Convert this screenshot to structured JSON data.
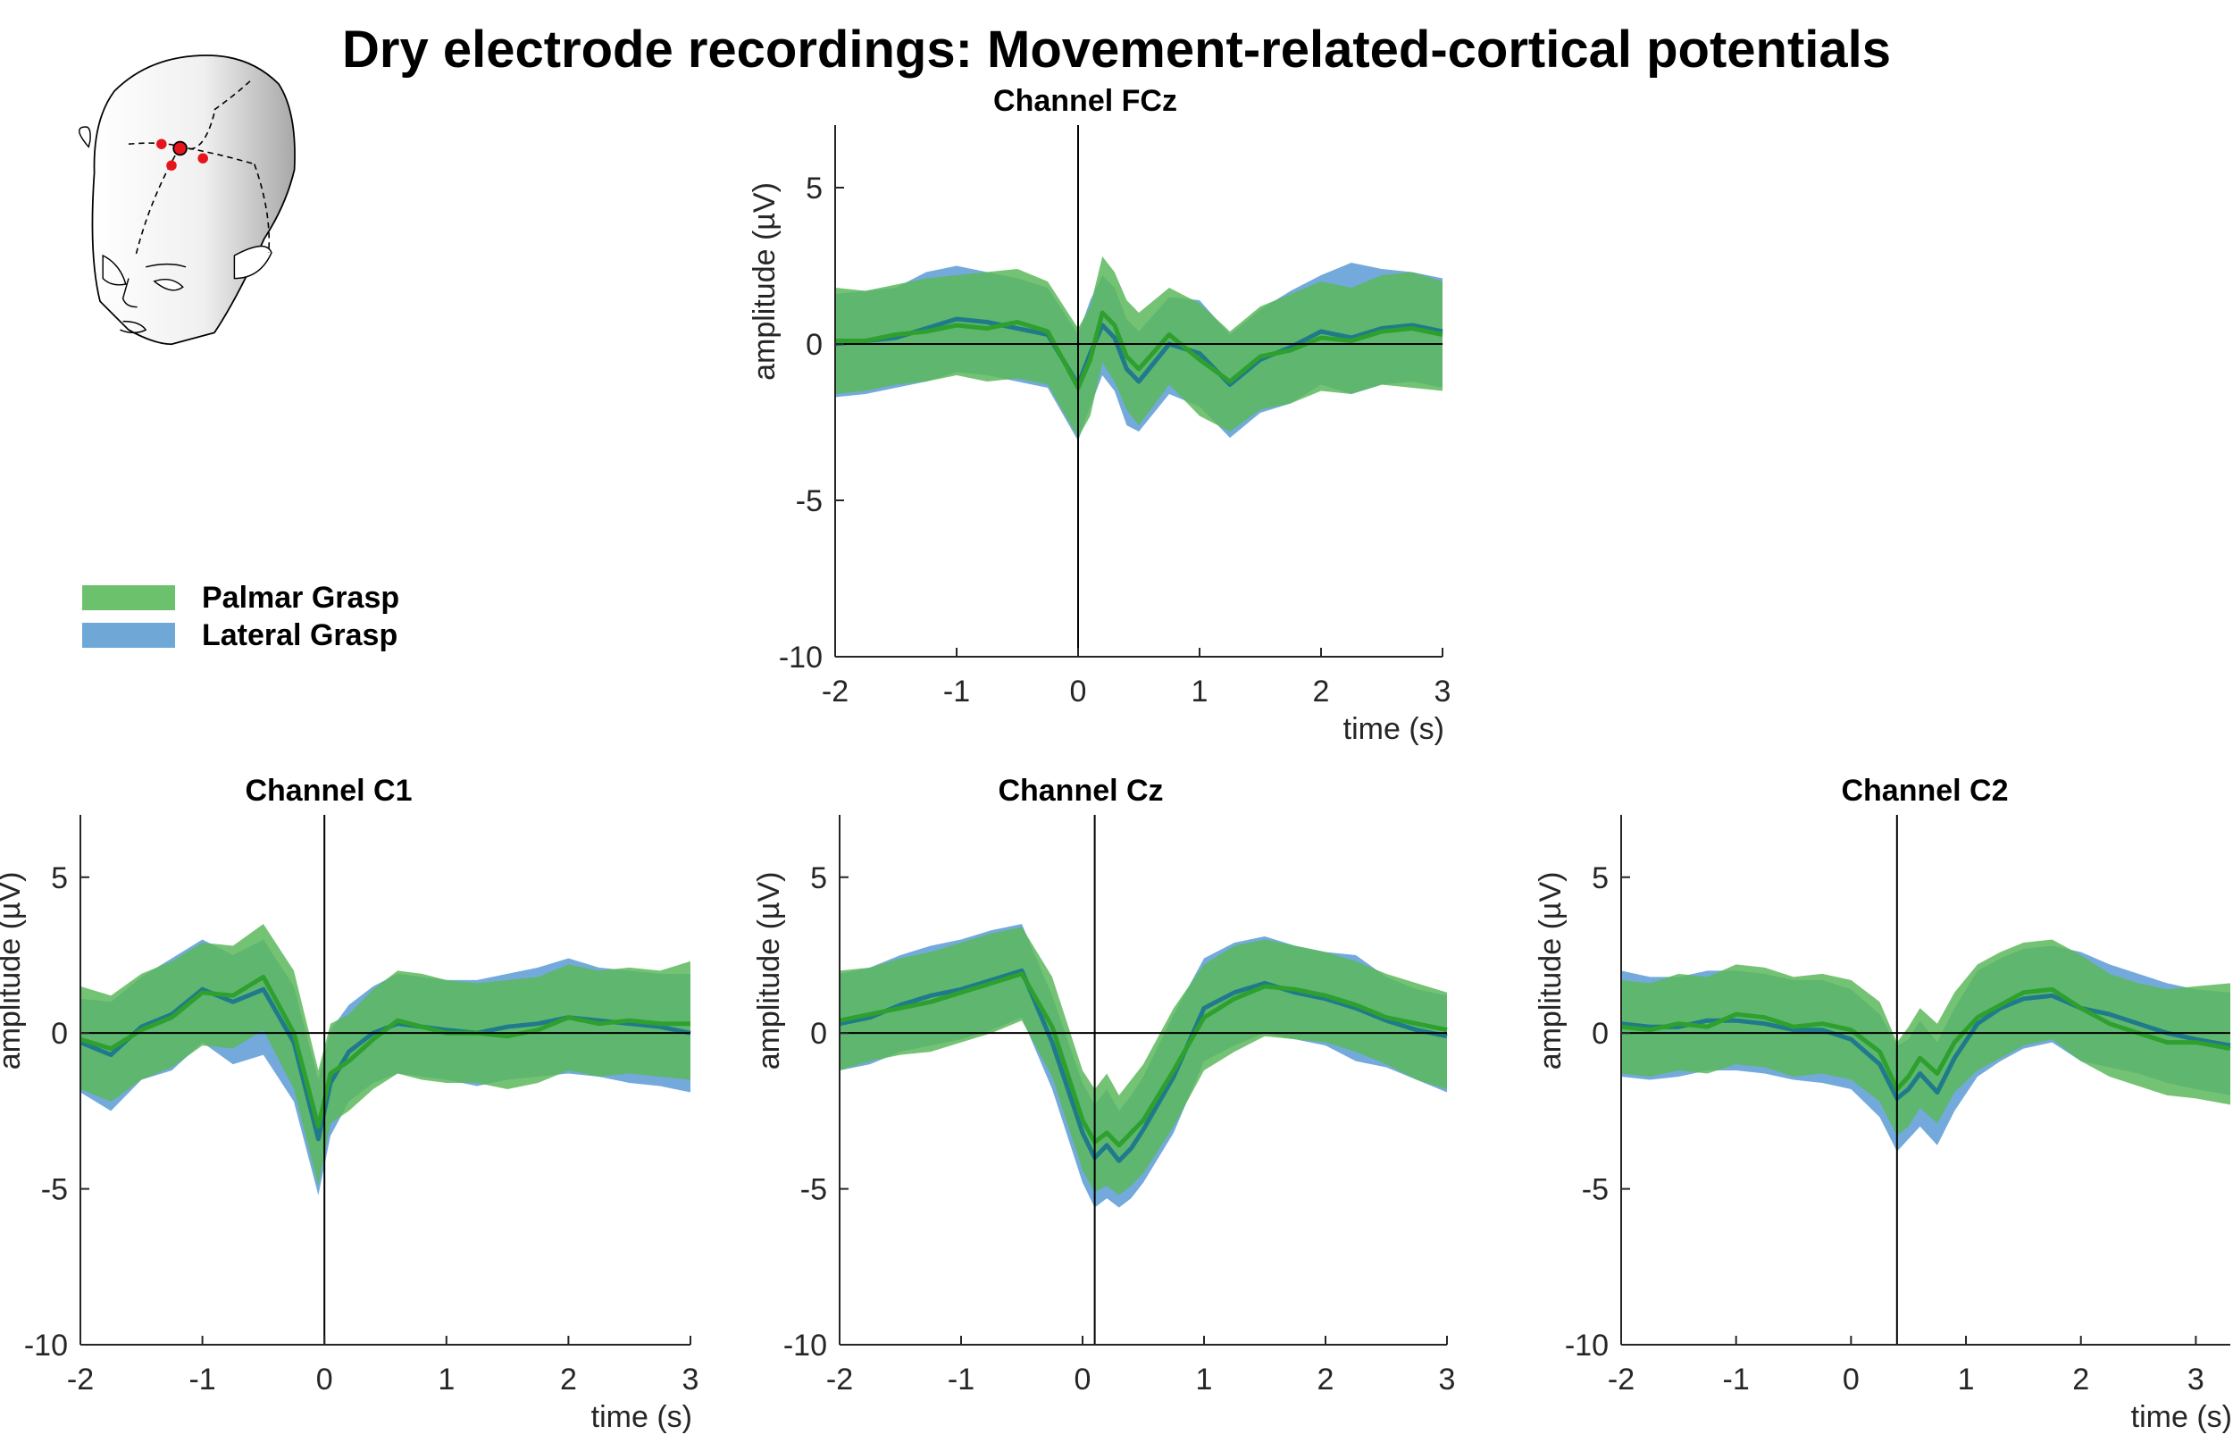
{
  "title": "Dry electrode recordings: Movement-related-cortical potentials",
  "colors": {
    "palmar": "#5cb85c",
    "lateral": "#5b9bd5",
    "palmar_line": "#2ea02e",
    "lateral_line": "#1f7a8c"
  },
  "legend": [
    {
      "label": "Palmar Grasp",
      "color": "#6cc16c"
    },
    {
      "label": "Lateral Grasp",
      "color": "#6fa8d6"
    }
  ],
  "chart_data": [
    {
      "type": "area",
      "title": "Channel FCz",
      "xlabel": "time (s)",
      "ylabel": "amplitude (µV)",
      "xlim": [
        -2,
        3
      ],
      "ylim": [
        -10,
        7
      ],
      "xticks": [
        -2,
        -1,
        0,
        1,
        2,
        3
      ],
      "yticks": [
        -10,
        -5,
        0,
        5
      ],
      "onset": 0,
      "x": [
        -2,
        -1.75,
        -1.5,
        -1.25,
        -1,
        -0.75,
        -0.5,
        -0.25,
        0,
        0.1,
        0.2,
        0.3,
        0.4,
        0.5,
        0.75,
        1,
        1.25,
        1.5,
        1.75,
        2,
        2.25,
        2.5,
        2.75,
        3
      ],
      "series": [
        {
          "name": "Palmar Grasp",
          "mean": [
            0.1,
            0.1,
            0.3,
            0.4,
            0.6,
            0.5,
            0.7,
            0.4,
            -1.4,
            -0.5,
            1.0,
            0.6,
            -0.4,
            -0.8,
            0.3,
            -0.5,
            -1.2,
            -0.4,
            -0.2,
            0.2,
            0.1,
            0.4,
            0.5,
            0.3
          ],
          "upper": [
            1.8,
            1.7,
            1.9,
            2.1,
            2.2,
            2.3,
            2.4,
            2.0,
            0.5,
            1.2,
            2.8,
            2.3,
            1.4,
            1.0,
            1.8,
            1.3,
            0.4,
            1.2,
            1.6,
            2.0,
            1.8,
            2.2,
            2.3,
            2.0
          ],
          "lower": [
            -1.6,
            -1.5,
            -1.3,
            -1.2,
            -1.0,
            -1.2,
            -1.1,
            -1.3,
            -3.0,
            -2.3,
            -0.6,
            -1.2,
            -2.1,
            -2.6,
            -1.3,
            -2.3,
            -2.8,
            -2.1,
            -1.9,
            -1.5,
            -1.6,
            -1.3,
            -1.4,
            -1.5
          ]
        },
        {
          "name": "Lateral Grasp",
          "mean": [
            0.0,
            0.1,
            0.2,
            0.5,
            0.8,
            0.7,
            0.5,
            0.3,
            -1.3,
            -0.3,
            0.6,
            0.2,
            -0.8,
            -1.2,
            0.0,
            -0.3,
            -1.3,
            -0.5,
            -0.1,
            0.4,
            0.2,
            0.5,
            0.6,
            0.4
          ],
          "upper": [
            1.6,
            1.7,
            1.8,
            2.3,
            2.5,
            2.3,
            2.1,
            1.8,
            0.3,
            1.4,
            2.2,
            1.8,
            0.8,
            0.4,
            1.5,
            1.4,
            0.3,
            1.1,
            1.7,
            2.2,
            2.6,
            2.4,
            2.3,
            2.1
          ],
          "lower": [
            -1.7,
            -1.6,
            -1.4,
            -1.2,
            -0.9,
            -1.0,
            -1.2,
            -1.4,
            -3.1,
            -2.0,
            -1.0,
            -1.5,
            -2.6,
            -2.8,
            -1.6,
            -2.0,
            -3.0,
            -2.2,
            -1.9,
            -1.3,
            -1.6,
            -1.3,
            -1.2,
            -1.4
          ]
        }
      ]
    },
    {
      "type": "area",
      "title": "Channel C1",
      "xlabel": "time (s)",
      "ylabel": "amplitude (µV)",
      "xlim": [
        -2,
        3
      ],
      "ylim": [
        -10,
        7
      ],
      "xticks": [
        -2,
        -1,
        0,
        1,
        2,
        3
      ],
      "yticks": [
        -10,
        -5,
        0,
        5
      ],
      "onset": 0,
      "x": [
        -2,
        -1.75,
        -1.5,
        -1.25,
        -1,
        -0.75,
        -0.5,
        -0.25,
        -0.05,
        0.05,
        0.2,
        0.4,
        0.6,
        0.8,
        1,
        1.25,
        1.5,
        1.75,
        2,
        2.25,
        2.5,
        2.75,
        3
      ],
      "series": [
        {
          "name": "Palmar Grasp",
          "mean": [
            -0.2,
            -0.5,
            0.1,
            0.5,
            1.3,
            1.2,
            1.8,
            0.0,
            -3.0,
            -1.3,
            -0.9,
            -0.2,
            0.4,
            0.2,
            0.0,
            0.0,
            -0.1,
            0.1,
            0.5,
            0.3,
            0.4,
            0.3,
            0.3
          ],
          "upper": [
            1.5,
            1.2,
            1.9,
            2.3,
            2.9,
            2.8,
            3.5,
            2.0,
            -1.2,
            0.3,
            0.6,
            1.4,
            2.0,
            1.9,
            1.7,
            1.6,
            1.7,
            1.8,
            2.2,
            2.0,
            2.1,
            2.0,
            2.3
          ],
          "lower": [
            -1.8,
            -2.2,
            -1.5,
            -1.1,
            -0.4,
            -0.5,
            0.1,
            -1.8,
            -4.9,
            -2.9,
            -2.5,
            -1.8,
            -1.3,
            -1.5,
            -1.6,
            -1.6,
            -1.8,
            -1.6,
            -1.2,
            -1.4,
            -1.3,
            -1.4,
            -1.5
          ]
        },
        {
          "name": "Lateral Grasp",
          "mean": [
            -0.3,
            -0.7,
            0.2,
            0.6,
            1.4,
            1.0,
            1.4,
            -0.3,
            -3.4,
            -1.6,
            -0.6,
            0.0,
            0.3,
            0.2,
            0.1,
            0.0,
            0.2,
            0.3,
            0.5,
            0.4,
            0.3,
            0.2,
            0.0
          ],
          "upper": [
            1.1,
            1.0,
            1.8,
            2.4,
            3.0,
            2.5,
            3.0,
            1.5,
            -1.5,
            0.1,
            0.9,
            1.5,
            1.9,
            1.8,
            1.7,
            1.7,
            1.9,
            2.1,
            2.4,
            2.1,
            2.0,
            1.9,
            1.9
          ],
          "lower": [
            -1.9,
            -2.5,
            -1.5,
            -1.2,
            -0.3,
            -1.0,
            -0.7,
            -2.2,
            -5.2,
            -3.3,
            -2.2,
            -1.6,
            -1.3,
            -1.4,
            -1.5,
            -1.7,
            -1.5,
            -1.4,
            -1.3,
            -1.4,
            -1.6,
            -1.7,
            -1.9
          ]
        }
      ]
    },
    {
      "type": "area",
      "title": "Channel Cz",
      "xlabel": "",
      "ylabel": "amplitude (µV)",
      "xlim": [
        -2,
        3
      ],
      "ylim": [
        -10,
        7
      ],
      "xticks": [
        -2,
        -1,
        0,
        1,
        2,
        3
      ],
      "yticks": [
        -10,
        -5,
        0,
        5
      ],
      "onset": 0.1,
      "x": [
        -2,
        -1.75,
        -1.5,
        -1.25,
        -1,
        -0.75,
        -0.5,
        -0.25,
        0,
        0.1,
        0.2,
        0.3,
        0.4,
        0.5,
        0.75,
        1,
        1.25,
        1.5,
        1.75,
        2,
        2.25,
        2.5,
        2.75,
        3
      ],
      "series": [
        {
          "name": "Palmar Grasp",
          "mean": [
            0.4,
            0.6,
            0.8,
            1.0,
            1.3,
            1.6,
            1.9,
            0.2,
            -2.8,
            -3.5,
            -3.2,
            -3.6,
            -3.2,
            -2.8,
            -1.2,
            0.5,
            1.1,
            1.5,
            1.4,
            1.2,
            0.9,
            0.5,
            0.3,
            0.1
          ],
          "upper": [
            2.0,
            2.1,
            2.4,
            2.6,
            2.9,
            3.2,
            3.4,
            1.8,
            -1.2,
            -1.8,
            -1.3,
            -2.0,
            -1.5,
            -1.0,
            0.8,
            2.2,
            2.8,
            3.0,
            2.8,
            2.6,
            2.3,
            1.9,
            1.6,
            1.3
          ],
          "lower": [
            -1.2,
            -0.9,
            -0.7,
            -0.6,
            -0.3,
            0.0,
            0.4,
            -1.4,
            -4.4,
            -5.1,
            -4.9,
            -5.2,
            -4.9,
            -4.5,
            -3.0,
            -1.2,
            -0.6,
            -0.1,
            -0.2,
            -0.3,
            -0.6,
            -1.0,
            -1.5,
            -1.8
          ]
        },
        {
          "name": "Lateral Grasp",
          "mean": [
            0.3,
            0.5,
            0.9,
            1.2,
            1.4,
            1.7,
            2.0,
            -0.3,
            -3.2,
            -4.0,
            -3.6,
            -4.1,
            -3.7,
            -3.1,
            -1.4,
            0.8,
            1.3,
            1.6,
            1.3,
            1.1,
            0.8,
            0.4,
            0.1,
            -0.1
          ],
          "upper": [
            1.9,
            2.1,
            2.5,
            2.8,
            3.0,
            3.3,
            3.5,
            1.2,
            -1.6,
            -2.3,
            -1.8,
            -2.5,
            -2.0,
            -1.4,
            0.6,
            2.4,
            2.9,
            3.1,
            2.8,
            2.6,
            2.5,
            1.8,
            1.4,
            1.2
          ],
          "lower": [
            -1.2,
            -1.0,
            -0.6,
            -0.4,
            -0.2,
            0.1,
            0.5,
            -1.8,
            -4.8,
            -5.6,
            -5.3,
            -5.6,
            -5.3,
            -4.8,
            -3.2,
            -0.9,
            -0.4,
            0.0,
            -0.2,
            -0.4,
            -0.9,
            -1.1,
            -1.5,
            -1.9
          ]
        }
      ]
    },
    {
      "type": "area",
      "title": "Channel C2",
      "xlabel": "time (s)",
      "ylabel": "amplitude (µV)",
      "xlim": [
        -2,
        3.3
      ],
      "ylim": [
        -10,
        7
      ],
      "xticks": [
        -2,
        -1,
        0,
        1,
        2,
        3
      ],
      "yticks": [
        -10,
        -5,
        0,
        5
      ],
      "onset": 0.4,
      "x": [
        -2,
        -1.75,
        -1.5,
        -1.25,
        -1,
        -0.75,
        -0.5,
        -0.25,
        0,
        0.25,
        0.4,
        0.5,
        0.6,
        0.75,
        0.9,
        1.1,
        1.3,
        1.5,
        1.75,
        2,
        2.25,
        2.5,
        2.75,
        3,
        3.3
      ],
      "series": [
        {
          "name": "Palmar Grasp",
          "mean": [
            0.2,
            0.1,
            0.3,
            0.2,
            0.6,
            0.5,
            0.2,
            0.3,
            0.1,
            -0.6,
            -1.8,
            -1.4,
            -0.8,
            -1.3,
            -0.3,
            0.5,
            0.9,
            1.3,
            1.4,
            0.8,
            0.3,
            0.0,
            -0.3,
            -0.3,
            -0.5
          ],
          "upper": [
            1.7,
            1.6,
            1.9,
            1.8,
            2.2,
            2.1,
            1.8,
            1.9,
            1.7,
            1.0,
            -0.3,
            0.2,
            0.8,
            0.3,
            1.3,
            2.2,
            2.6,
            2.9,
            3.0,
            2.5,
            1.9,
            1.6,
            1.4,
            1.5,
            1.6
          ],
          "lower": [
            -1.3,
            -1.4,
            -1.2,
            -1.3,
            -1.0,
            -1.1,
            -1.4,
            -1.3,
            -1.5,
            -2.2,
            -3.3,
            -3.0,
            -2.4,
            -2.9,
            -1.9,
            -1.2,
            -0.8,
            -0.4,
            -0.2,
            -0.9,
            -1.4,
            -1.7,
            -2.0,
            -2.1,
            -2.3
          ]
        },
        {
          "name": "Lateral Grasp",
          "mean": [
            0.3,
            0.2,
            0.2,
            0.4,
            0.4,
            0.3,
            0.1,
            0.1,
            -0.2,
            -1.0,
            -2.1,
            -1.8,
            -1.3,
            -1.9,
            -0.8,
            0.3,
            0.8,
            1.1,
            1.2,
            0.8,
            0.6,
            0.3,
            0.0,
            -0.2,
            -0.4
          ],
          "upper": [
            2.0,
            1.8,
            1.8,
            2.0,
            2.0,
            1.9,
            1.7,
            1.7,
            1.4,
            0.6,
            -0.4,
            -0.2,
            0.4,
            -0.3,
            0.8,
            2.0,
            2.4,
            2.7,
            2.8,
            2.6,
            2.2,
            1.9,
            1.6,
            1.4,
            1.3
          ],
          "lower": [
            -1.4,
            -1.5,
            -1.4,
            -1.2,
            -1.2,
            -1.3,
            -1.5,
            -1.6,
            -1.8,
            -2.7,
            -3.8,
            -3.4,
            -3.0,
            -3.6,
            -2.5,
            -1.4,
            -0.9,
            -0.5,
            -0.3,
            -0.9,
            -1.1,
            -1.3,
            -1.6,
            -1.8,
            -2.0
          ]
        }
      ]
    }
  ]
}
